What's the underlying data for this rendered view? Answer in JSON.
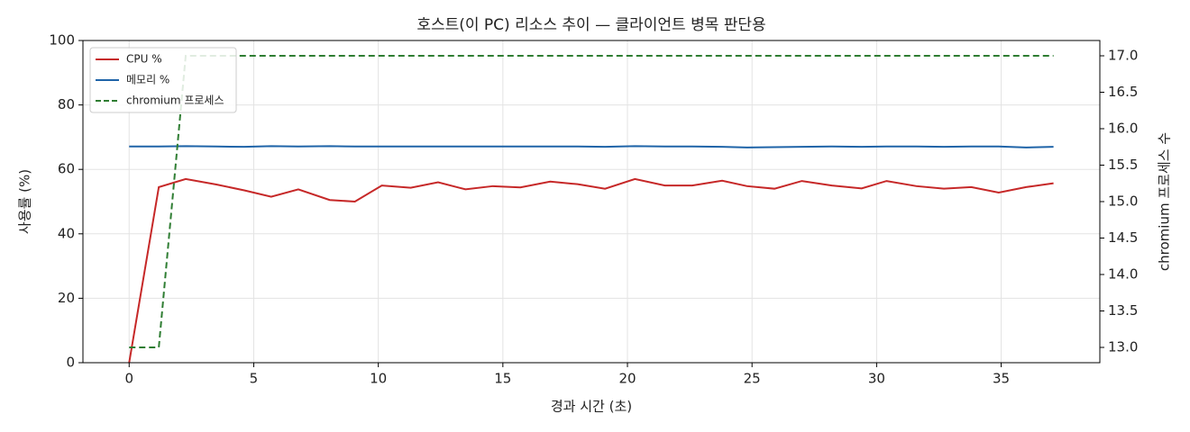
{
  "chart_data": {
    "type": "line",
    "title": "호스트(이 PC) 리소스 추이 — 클라이언트 병목 판단용",
    "xlabel": "경과 시간 (초)",
    "ylabel": "사용률 (%)",
    "y2label": "chromium 프로세스 수",
    "x": [
      0,
      1.19,
      2.27,
      3.5,
      4.62,
      5.7,
      6.79,
      8.05,
      9.06,
      10.14,
      11.3,
      12.4,
      13.5,
      14.6,
      15.7,
      16.9,
      18.0,
      19.1,
      20.3,
      21.5,
      22.6,
      23.8,
      24.8,
      25.9,
      27.0,
      28.2,
      29.4,
      30.4,
      31.6,
      32.7,
      33.8,
      34.9,
      36.0,
      37.1
    ],
    "series": [
      {
        "name": "CPU %",
        "color": "#c62828",
        "linestyle": "solid",
        "values": [
          0,
          54.5,
          57,
          55.3,
          53.5,
          51.5,
          53.8,
          50.5,
          50,
          55,
          54.3,
          56,
          53.8,
          54.8,
          54.4,
          56.2,
          55.4,
          54,
          57,
          55,
          55,
          56.5,
          54.8,
          54,
          56.4,
          55,
          54.1,
          56.4,
          54.8,
          54,
          54.5,
          52.8,
          54.5,
          55.7
        ]
      },
      {
        "name": "메모리 %",
        "color": "#1f64a8",
        "linestyle": "solid",
        "values": [
          67.1,
          67.1,
          67.2,
          67.1,
          67,
          67.2,
          67.1,
          67.2,
          67.1,
          67.1,
          67.1,
          67.1,
          67.1,
          67.1,
          67.1,
          67.1,
          67.1,
          67,
          67.2,
          67.1,
          67.1,
          67,
          66.8,
          66.9,
          67,
          67.1,
          67,
          67.1,
          67.1,
          67,
          67.1,
          67.1,
          66.8,
          67
        ]
      },
      {
        "name": "chromium 프로세스",
        "color": "#2e7d32",
        "linestyle": "dashed",
        "axis": "y2",
        "values": [
          13,
          13,
          17,
          17,
          17,
          17,
          17,
          17,
          17,
          17,
          17,
          17,
          17,
          17,
          17,
          17,
          17,
          17,
          17,
          17,
          17,
          17,
          17,
          17,
          17,
          17,
          17,
          17,
          17,
          17,
          17,
          17,
          17,
          17
        ]
      }
    ],
    "xlim": [
      -1.855,
      38.96
    ],
    "xticks": [
      0,
      5,
      10,
      15,
      20,
      25,
      30,
      35
    ],
    "ylim": [
      0,
      100
    ],
    "yticks": [
      0,
      20,
      40,
      60,
      80,
      100
    ],
    "y2lim": [
      12.79,
      17.21
    ],
    "y2ticks": [
      {
        "value": 13,
        "label": "13.0"
      },
      {
        "value": 13.5,
        "label": "13.5"
      },
      {
        "value": 14,
        "label": "14.0"
      },
      {
        "value": 14.5,
        "label": "14.5"
      },
      {
        "value": 15,
        "label": "15.0"
      },
      {
        "value": 15.5,
        "label": "15.5"
      },
      {
        "value": 16,
        "label": "16.0"
      },
      {
        "value": 16.5,
        "label": "16.5"
      },
      {
        "value": 17,
        "label": "17.0"
      }
    ],
    "grid": true,
    "legend": "upper left"
  }
}
